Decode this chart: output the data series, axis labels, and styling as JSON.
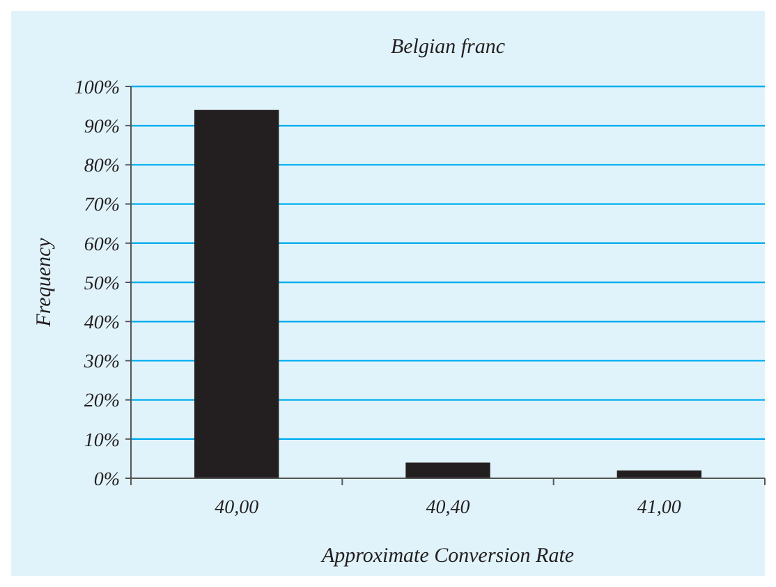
{
  "chart_data": {
    "type": "bar",
    "title": "Belgian franc",
    "xlabel": "Approximate Conversion Rate",
    "ylabel": "Frequency",
    "categories": [
      "40,00",
      "40,40",
      "41,00"
    ],
    "values": [
      94,
      4,
      2
    ],
    "color": "#231f20",
    "ylim": [
      0,
      100
    ],
    "yticks": [
      {
        "value": 0,
        "label": "0%"
      },
      {
        "value": 10,
        "label": "10%"
      },
      {
        "value": 20,
        "label": "20%"
      },
      {
        "value": 30,
        "label": "30%"
      },
      {
        "value": 40,
        "label": "40%"
      },
      {
        "value": 50,
        "label": "50%"
      },
      {
        "value": 60,
        "label": "60%"
      },
      {
        "value": 70,
        "label": "70%"
      },
      {
        "value": 80,
        "label": "80%"
      },
      {
        "value": 90,
        "label": "90%"
      },
      {
        "value": 100,
        "label": "100%"
      }
    ],
    "grid": "y"
  }
}
